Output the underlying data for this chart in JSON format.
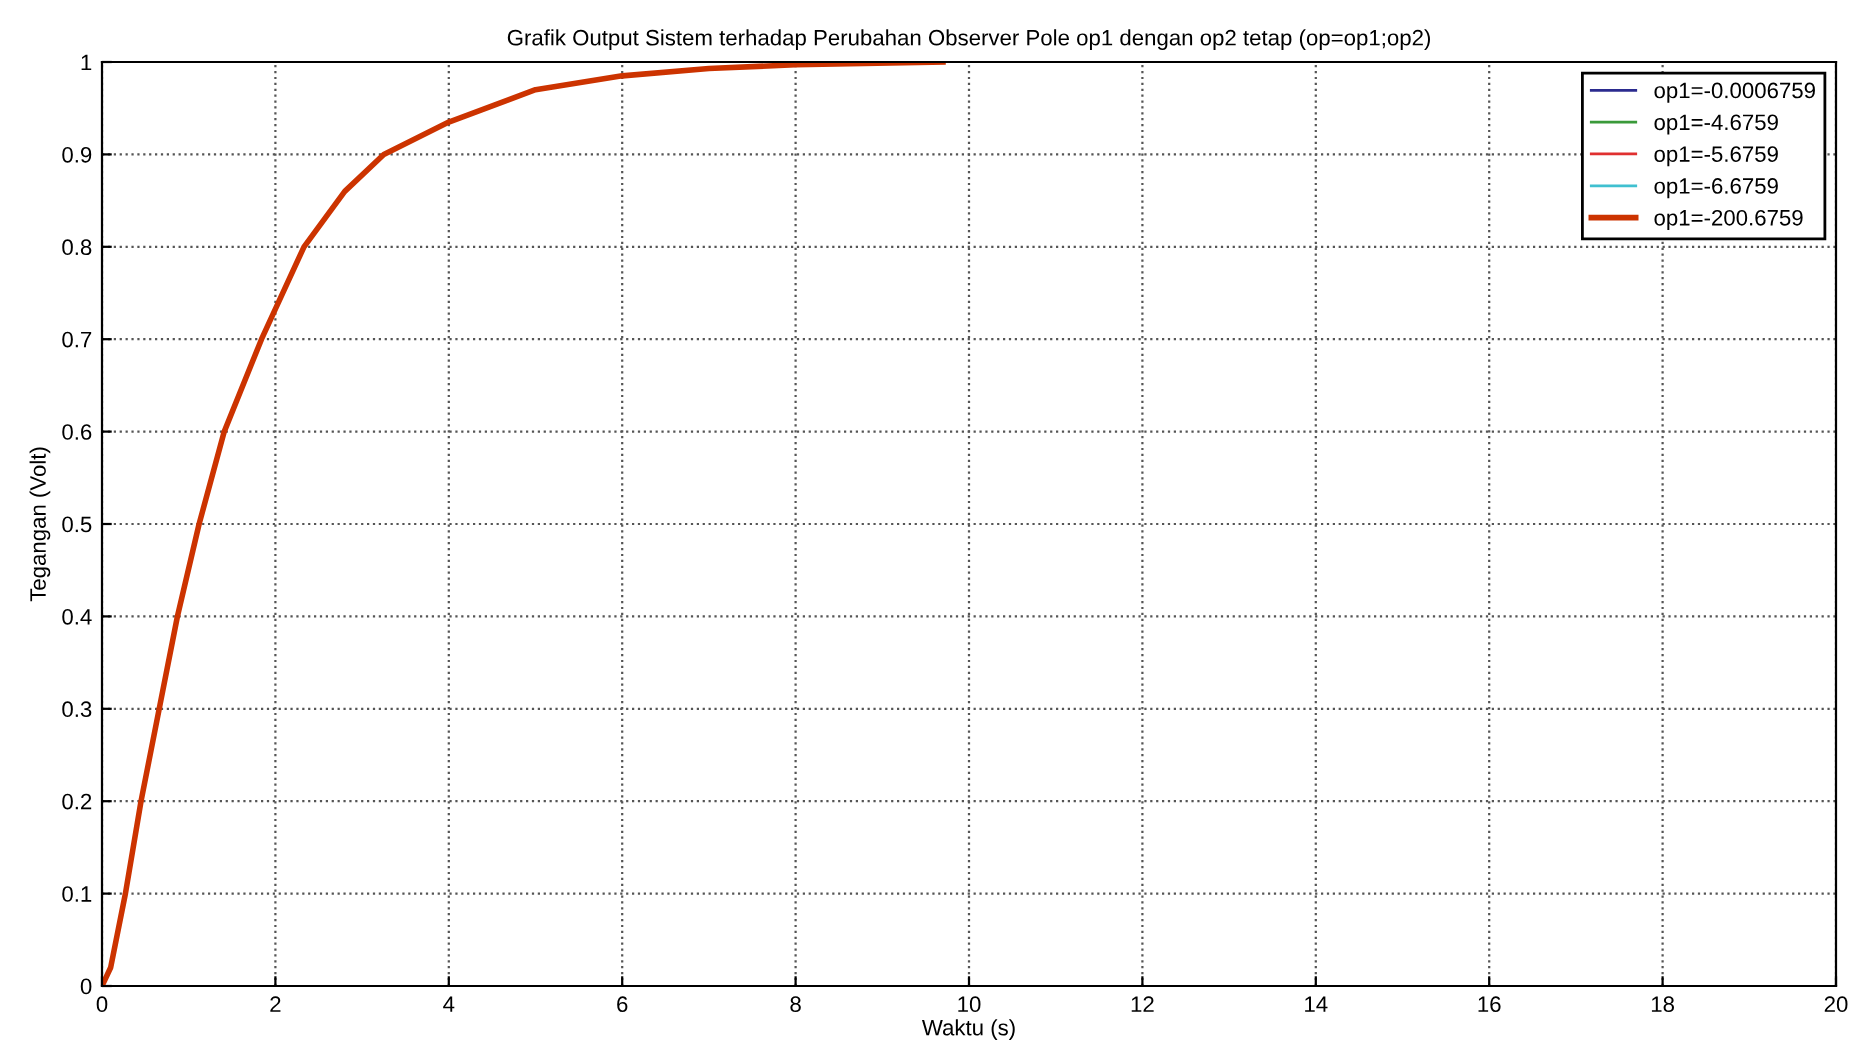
{
  "chart_data": {
    "type": "line",
    "title": "Grafik Output Sistem terhadap Perubahan Observer Pole op1 dengan op2 tetap (op=op1;op2)",
    "xlabel": "Waktu (s)",
    "ylabel": "Tegangan (Volt)",
    "x": [
      0,
      0.1,
      0.27,
      0.45,
      0.66,
      0.87,
      1.12,
      1.41,
      1.84,
      2.33,
      2.8,
      3.25,
      4,
      5,
      6,
      7,
      8,
      9.7
    ],
    "series": [
      {
        "name": "op1=-0.0006759",
        "color": "#2b2b8f",
        "values": [
          null,
          null,
          null,
          null,
          null,
          null,
          null,
          null,
          null,
          null,
          null,
          null,
          null,
          null,
          null,
          null,
          null,
          null
        ]
      },
      {
        "name": "op1=-4.6759",
        "color": "#3a9a3a",
        "values": [
          null,
          null,
          null,
          null,
          null,
          null,
          null,
          null,
          null,
          null,
          null,
          null,
          null,
          null,
          null,
          null,
          null,
          null
        ]
      },
      {
        "name": "op1=-5.6759",
        "color": "#e03030",
        "values": [
          null,
          null,
          null,
          null,
          null,
          null,
          null,
          null,
          null,
          null,
          null,
          null,
          null,
          null,
          null,
          null,
          null,
          null
        ]
      },
      {
        "name": "op1=-6.6759",
        "color": "#40c0d0",
        "values": [
          null,
          null,
          null,
          null,
          null,
          null,
          null,
          null,
          null,
          null,
          null,
          null,
          null,
          null,
          null,
          null,
          null,
          null
        ]
      },
      {
        "name": "op1=-200.6759",
        "color": "#cc3300",
        "values": [
          0,
          0.02,
          0.1,
          0.2,
          0.3,
          0.4,
          0.5,
          0.6,
          0.7,
          0.8,
          0.86,
          0.9,
          0.935,
          0.97,
          0.985,
          0.993,
          0.997,
          1
        ]
      }
    ],
    "xlim": [
      0,
      20
    ],
    "xticks": [
      0,
      2,
      4,
      6,
      8,
      10,
      12,
      14,
      16,
      18,
      20
    ],
    "ylim": [
      0,
      1
    ],
    "yticks": [
      0,
      0.1,
      0.2,
      0.3,
      0.4,
      0.5,
      0.6,
      0.7,
      0.8,
      0.9,
      1
    ],
    "grid": true,
    "legend": "top right",
    "line_style": "solid",
    "marker": "none"
  }
}
